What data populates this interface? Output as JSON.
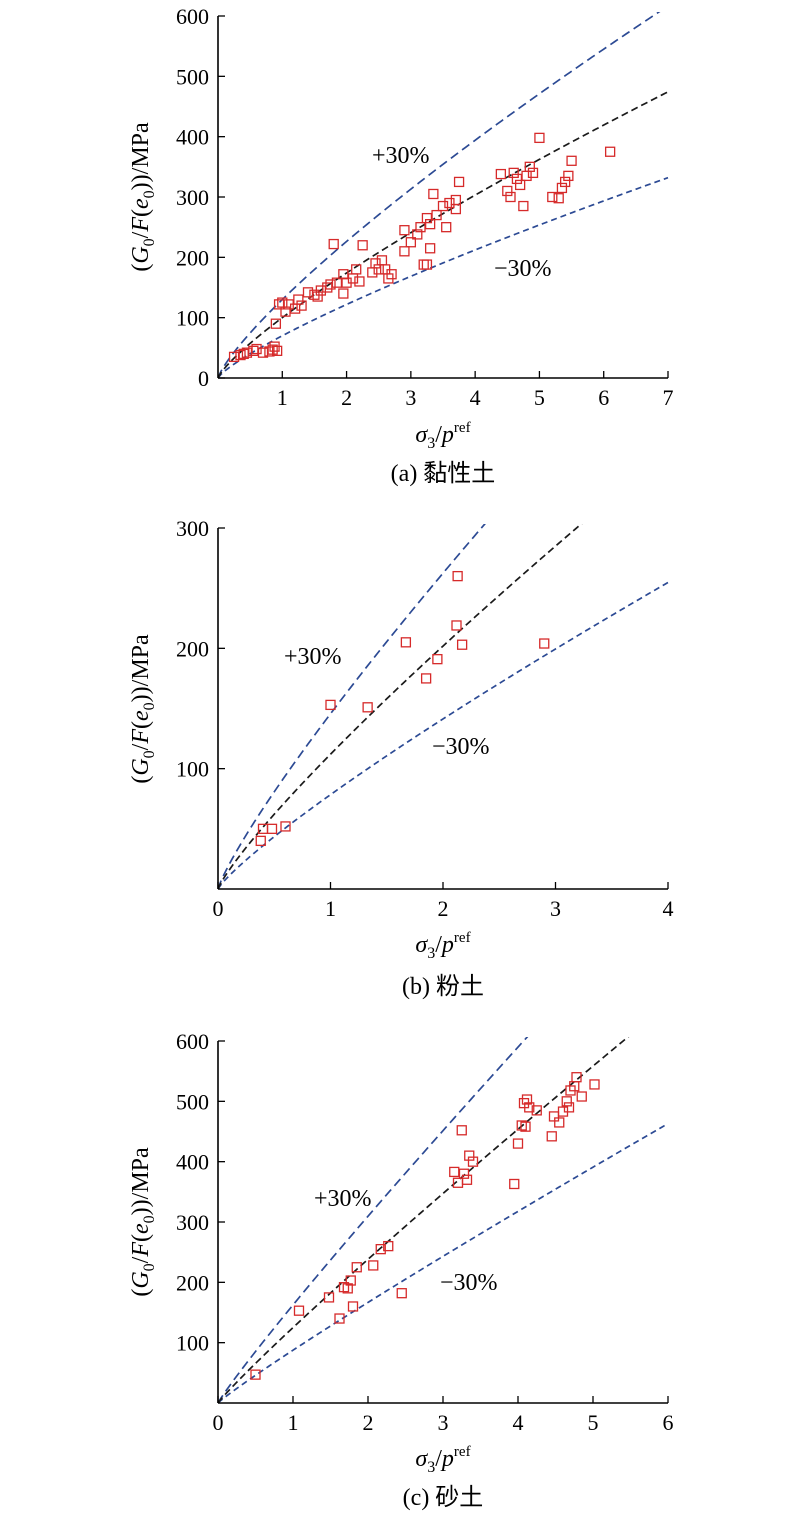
{
  "chart_data": [
    {
      "type": "scatter",
      "caption": "(a) 黏性土",
      "ylabel": {
        "pre": "(",
        "g": "G",
        "gsub": "0",
        "mid": "/",
        "f": "F",
        "paren": "(",
        "e": "e",
        "esub": "0",
        "post": "))/MPa"
      },
      "xlabel": {
        "sigma": "σ",
        "sub": "3",
        "slash": "/",
        "p": "p",
        "sup": "ref"
      },
      "xlim": [
        0,
        7
      ],
      "ylim": [
        0,
        600
      ],
      "xticks": [
        "1",
        "2",
        "3",
        "4",
        "5",
        "6",
        "7"
      ],
      "yticks": [
        "0",
        "100",
        "200",
        "300",
        "400",
        "500",
        "600"
      ],
      "annotations": {
        "plus": "+30%",
        "minus": "−30%"
      },
      "lines": {
        "center": {
          "a": 100,
          "b": 0.8
        },
        "upper_factor": 1.3,
        "lower_factor": 0.7
      },
      "points": [
        [
          0.25,
          35
        ],
        [
          0.35,
          38
        ],
        [
          0.4,
          40
        ],
        [
          0.45,
          42
        ],
        [
          0.55,
          45
        ],
        [
          0.6,
          48
        ],
        [
          0.7,
          42
        ],
        [
          0.8,
          44
        ],
        [
          0.85,
          47
        ],
        [
          0.88,
          52
        ],
        [
          0.92,
          45
        ],
        [
          0.9,
          90
        ],
        [
          0.95,
          122
        ],
        [
          1.0,
          125
        ],
        [
          1.05,
          110
        ],
        [
          1.1,
          122
        ],
        [
          1.2,
          115
        ],
        [
          1.25,
          130
        ],
        [
          1.3,
          120
        ],
        [
          1.4,
          142
        ],
        [
          1.5,
          138
        ],
        [
          1.55,
          135
        ],
        [
          1.6,
          145
        ],
        [
          1.7,
          150
        ],
        [
          1.75,
          155
        ],
        [
          1.85,
          158
        ],
        [
          1.95,
          140
        ],
        [
          1.95,
          172
        ],
        [
          2.0,
          158
        ],
        [
          2.1,
          165
        ],
        [
          2.15,
          180
        ],
        [
          2.2,
          160
        ],
        [
          1.8,
          222
        ],
        [
          2.25,
          220
        ],
        [
          2.4,
          175
        ],
        [
          2.45,
          190
        ],
        [
          2.5,
          180
        ],
        [
          2.55,
          195
        ],
        [
          2.6,
          180
        ],
        [
          2.65,
          165
        ],
        [
          2.7,
          172
        ],
        [
          2.9,
          210
        ],
        [
          2.9,
          245
        ],
        [
          3.0,
          225
        ],
        [
          3.1,
          238
        ],
        [
          3.15,
          250
        ],
        [
          3.2,
          188
        ],
        [
          3.25,
          188
        ],
        [
          3.25,
          265
        ],
        [
          3.3,
          255
        ],
        [
          3.3,
          215
        ],
        [
          3.35,
          305
        ],
        [
          3.4,
          270
        ],
        [
          3.5,
          285
        ],
        [
          3.55,
          250
        ],
        [
          3.6,
          290
        ],
        [
          3.7,
          280
        ],
        [
          3.7,
          295
        ],
        [
          3.75,
          325
        ],
        [
          4.4,
          338
        ],
        [
          4.5,
          310
        ],
        [
          4.55,
          300
        ],
        [
          4.6,
          340
        ],
        [
          4.65,
          330
        ],
        [
          4.7,
          320
        ],
        [
          4.75,
          285
        ],
        [
          4.8,
          335
        ],
        [
          4.85,
          350
        ],
        [
          4.9,
          340
        ],
        [
          5.0,
          398
        ],
        [
          5.2,
          300
        ],
        [
          5.3,
          298
        ],
        [
          5.35,
          315
        ],
        [
          5.4,
          325
        ],
        [
          5.45,
          335
        ],
        [
          5.5,
          360
        ],
        [
          6.1,
          375
        ]
      ]
    },
    {
      "type": "scatter",
      "caption": "(b) 粉土",
      "ylabel": {
        "pre": "(",
        "g": "G",
        "gsub": "0",
        "mid": "/",
        "f": "F",
        "paren": "(",
        "e": "e",
        "esub": "0",
        "post": "))/MPa"
      },
      "xlabel": {
        "sigma": "σ",
        "sub": "3",
        "slash": "/",
        "p": "p",
        "sup": "ref"
      },
      "xlim": [
        0,
        4
      ],
      "ylim": [
        0,
        300
      ],
      "xticks": [
        "0",
        "1",
        "2",
        "3",
        "4"
      ],
      "yticks": [
        "100",
        "200",
        "300"
      ],
      "annotations": {
        "plus": "+30%",
        "minus": "−30%"
      },
      "lines": {
        "center": {
          "a": 112,
          "b": 0.85
        },
        "upper_factor": 1.3,
        "lower_factor": 0.7
      },
      "points": [
        [
          0.38,
          40
        ],
        [
          0.4,
          50
        ],
        [
          0.48,
          50
        ],
        [
          0.6,
          52
        ],
        [
          1.0,
          153
        ],
        [
          1.33,
          151
        ],
        [
          1.67,
          205
        ],
        [
          1.85,
          175
        ],
        [
          1.95,
          191
        ],
        [
          2.12,
          219
        ],
        [
          2.13,
          260
        ],
        [
          2.17,
          203
        ],
        [
          2.9,
          204
        ]
      ]
    },
    {
      "type": "scatter",
      "caption": "(c) 砂土",
      "ylabel": {
        "pre": "(",
        "g": "G",
        "gsub": "0",
        "mid": "/",
        "f": "F",
        "paren": "(",
        "e": "e",
        "esub": "0",
        "post": "))/MPa"
      },
      "xlabel": {
        "sigma": "σ",
        "sub": "3",
        "slash": "/",
        "p": "p",
        "sup": "ref"
      },
      "xlim": [
        0,
        6
      ],
      "ylim": [
        0,
        600
      ],
      "xticks": [
        "0",
        "1",
        "2",
        "3",
        "4",
        "5",
        "6"
      ],
      "yticks": [
        "100",
        "200",
        "300",
        "400",
        "500",
        "600"
      ],
      "annotations": {
        "plus": "+30%",
        "minus": "−30%"
      },
      "lines": {
        "center": {
          "a": 125,
          "b": 0.93
        },
        "upper_factor": 1.3,
        "lower_factor": 0.7
      },
      "points": [
        [
          0.5,
          47
        ],
        [
          1.08,
          153
        ],
        [
          1.48,
          175
        ],
        [
          1.62,
          140
        ],
        [
          1.68,
          192
        ],
        [
          1.73,
          190
        ],
        [
          1.77,
          203
        ],
        [
          1.8,
          160
        ],
        [
          1.85,
          225
        ],
        [
          2.07,
          228
        ],
        [
          2.17,
          255
        ],
        [
          2.27,
          260
        ],
        [
          2.45,
          182
        ],
        [
          3.15,
          383
        ],
        [
          3.2,
          365
        ],
        [
          3.25,
          452
        ],
        [
          3.28,
          380
        ],
        [
          3.32,
          370
        ],
        [
          3.35,
          410
        ],
        [
          3.4,
          400
        ],
        [
          3.95,
          363
        ],
        [
          4.0,
          430
        ],
        [
          4.05,
          460
        ],
        [
          4.08,
          497
        ],
        [
          4.1,
          458
        ],
        [
          4.12,
          503
        ],
        [
          4.15,
          490
        ],
        [
          4.25,
          485
        ],
        [
          4.45,
          442
        ],
        [
          4.48,
          475
        ],
        [
          4.55,
          465
        ],
        [
          4.6,
          483
        ],
        [
          4.65,
          500
        ],
        [
          4.68,
          490
        ],
        [
          4.7,
          518
        ],
        [
          4.75,
          525
        ],
        [
          4.78,
          540
        ],
        [
          4.85,
          508
        ],
        [
          5.02,
          528
        ]
      ]
    }
  ]
}
